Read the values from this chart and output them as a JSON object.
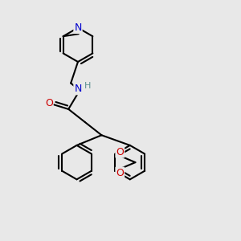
{
  "bg_color": "#e8e8e8",
  "atom_colors": {
    "N": "#0000cc",
    "O": "#cc0000",
    "C": "#000000",
    "H": "#5a9090"
  },
  "bond_color": "#000000",
  "bond_width": 1.5,
  "figsize": [
    3.0,
    3.0
  ],
  "dpi": 100
}
